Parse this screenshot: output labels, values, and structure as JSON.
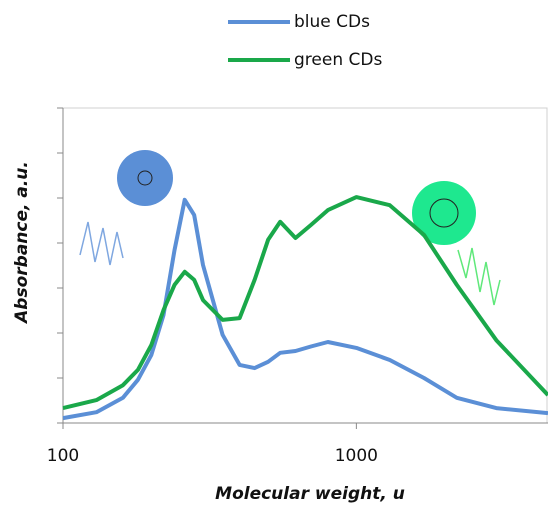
{
  "chart_data": {
    "type": "line",
    "x_label": "Molecular weight, u",
    "y_label": "Absorbance, a.u.",
    "x": [
      100,
      130,
      160,
      180,
      200,
      220,
      240,
      260,
      280,
      300,
      350,
      400,
      450,
      500,
      550,
      620,
      700,
      800,
      1000,
      1300,
      1700,
      2200,
      3000,
      4500
    ],
    "series": [
      {
        "name": "blue CDs",
        "color": "#5b8fd6",
        "values": [
          0.11,
          0.24,
          0.56,
          0.96,
          1.51,
          2.4,
          3.84,
          4.96,
          4.62,
          3.51,
          1.96,
          1.29,
          1.22,
          1.36,
          1.56,
          1.6,
          1.7,
          1.8,
          1.67,
          1.4,
          1.0,
          0.56,
          0.33,
          0.22
        ]
      },
      {
        "name": "green CDs",
        "color": "#1aa84a",
        "values": [
          0.33,
          0.51,
          0.84,
          1.18,
          1.73,
          2.51,
          3.07,
          3.36,
          3.18,
          2.73,
          2.29,
          2.33,
          3.18,
          4.07,
          4.47,
          4.11,
          4.4,
          4.73,
          5.02,
          4.84,
          4.18,
          3.07,
          1.84,
          0.62
        ]
      }
    ],
    "log_x": true,
    "xlim": [
      100,
      4500
    ],
    "xticks": [
      100,
      1000
    ],
    "ylim": [
      0,
      7
    ],
    "yticks": [
      0,
      1,
      2,
      3,
      4,
      5,
      6,
      7
    ]
  }
}
